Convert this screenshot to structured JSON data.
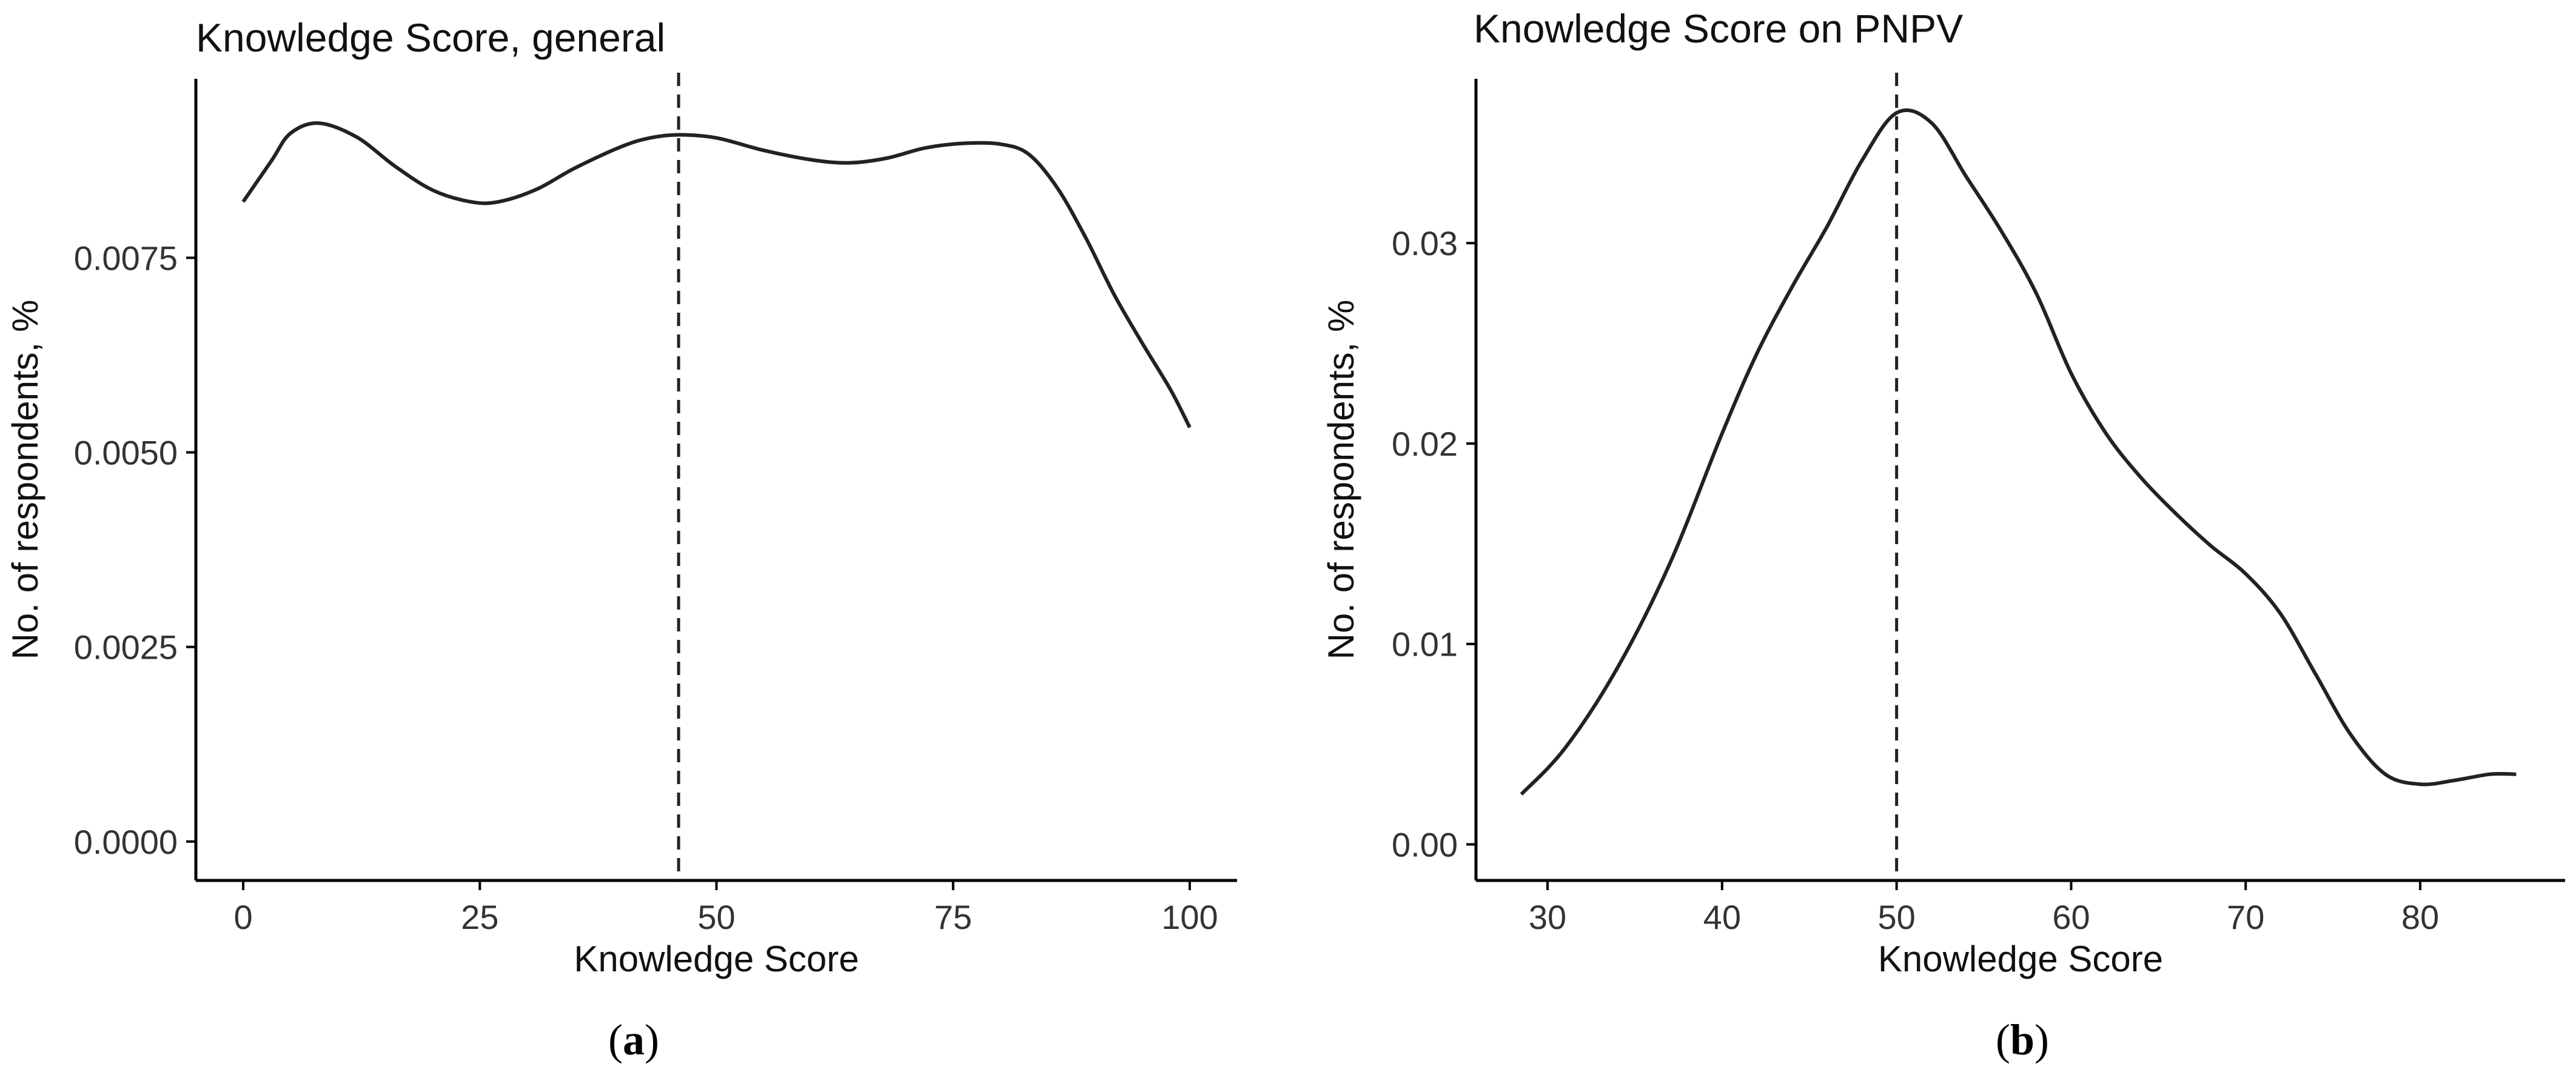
{
  "chart_data": [
    {
      "type": "line",
      "title": "Knowledge Score, general",
      "xlabel": "Knowledge Score",
      "ylabel": "No. of respondents, %",
      "panel_label": "a",
      "xlim": [
        -5,
        105
      ],
      "ylim": [
        -0.0005,
        0.0098
      ],
      "x_ticks": [
        0,
        25,
        50,
        75,
        100
      ],
      "y_ticks": [
        0.0,
        0.0025,
        0.005,
        0.0075
      ],
      "x_tick_labels": [
        "0",
        "25",
        "50",
        "75",
        "100"
      ],
      "y_tick_labels": [
        "0.0000",
        "0.0025",
        "0.0050",
        "0.0075"
      ],
      "reference_line_x": 46,
      "grid": false,
      "series": [
        {
          "x": [
            0,
            3,
            5,
            8,
            12,
            16,
            20,
            24,
            27,
            31,
            35,
            40,
            43,
            46,
            50,
            55,
            60,
            64,
            68,
            72,
            76,
            80,
            83,
            86,
            89,
            92,
            95,
            98,
            100
          ],
          "y": [
            0.00822,
            0.00875,
            0.0091,
            0.00923,
            0.00905,
            0.00868,
            0.00837,
            0.00822,
            0.00822,
            0.00838,
            0.00865,
            0.00893,
            0.00904,
            0.00908,
            0.00904,
            0.00888,
            0.00876,
            0.00872,
            0.00878,
            0.00891,
            0.00897,
            0.00896,
            0.00883,
            0.0084,
            0.00776,
            0.00703,
            0.0064,
            0.0058,
            0.00532
          ]
        }
      ]
    },
    {
      "type": "line",
      "title": "Knowledge Score on PNPV",
      "xlabel": "Knowledge Score",
      "ylabel": "No. of respondents, %",
      "panel_label": "b",
      "xlim": [
        25.9,
        88.3
      ],
      "ylim": [
        -0.0018,
        0.0382
      ],
      "x_ticks": [
        30,
        40,
        50,
        60,
        70,
        80
      ],
      "y_ticks": [
        0.0,
        0.01,
        0.02,
        0.03
      ],
      "x_tick_labels": [
        "30",
        "40",
        "50",
        "60",
        "70",
        "80"
      ],
      "y_tick_labels": [
        "0.00",
        "0.01",
        "0.02",
        "0.03"
      ],
      "reference_line_x": 50,
      "grid": false,
      "series": [
        {
          "x": [
            28.5,
            31,
            34,
            37,
            40,
            42,
            44,
            46,
            48,
            50,
            52,
            54,
            56,
            58,
            60,
            62,
            64,
            66,
            68,
            70,
            72,
            74,
            76,
            78,
            80,
            82,
            84,
            85.5
          ],
          "y": [
            0.0025,
            0.0048,
            0.0088,
            0.014,
            0.0205,
            0.0245,
            0.0278,
            0.0308,
            0.0341,
            0.0365,
            0.036,
            0.0333,
            0.0306,
            0.0275,
            0.0235,
            0.0205,
            0.0183,
            0.0165,
            0.0149,
            0.0135,
            0.0115,
            0.0085,
            0.0055,
            0.0035,
            0.003,
            0.0032,
            0.0035,
            0.0035
          ]
        }
      ]
    }
  ]
}
